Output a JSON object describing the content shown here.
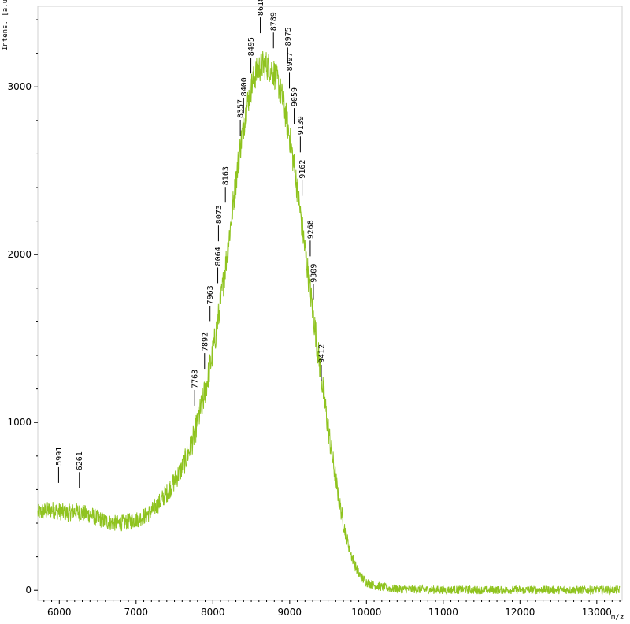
{
  "chart_data": {
    "type": "line",
    "title": "",
    "xlabel": "m/z",
    "ylabel": "Intens. [a.u.]",
    "xlim": [
      5720,
      13330
    ],
    "ylim": [
      -60,
      3480
    ],
    "x_ticks": [
      6000,
      7000,
      8000,
      9000,
      10000,
      11000,
      12000,
      13000
    ],
    "y_ticks": [
      0,
      1000,
      2000,
      3000
    ],
    "line_color": "#8fc31f",
    "grid": false,
    "series": [
      {
        "name": "",
        "x": [
          5720,
          5800,
          5900,
          6000,
          6100,
          6200,
          6300,
          6400,
          6500,
          6600,
          6700,
          6800,
          6900,
          7000,
          7100,
          7200,
          7300,
          7400,
          7500,
          7600,
          7700,
          7750,
          7800,
          7850,
          7900,
          7950,
          8000,
          8050,
          8100,
          8150,
          8200,
          8250,
          8300,
          8350,
          8400,
          8450,
          8500,
          8550,
          8600,
          8650,
          8700,
          8750,
          8800,
          8850,
          8900,
          8950,
          9000,
          9050,
          9100,
          9150,
          9200,
          9250,
          9300,
          9350,
          9400,
          9450,
          9500,
          9550,
          9600,
          9650,
          9700,
          9750,
          9800,
          9850,
          9900,
          9950,
          10000,
          10100,
          10200,
          10300,
          10400,
          10500,
          10700,
          11000,
          11500,
          12000,
          12500,
          13000,
          13300
        ],
        "y": [
          460,
          470,
          480,
          470,
          460,
          470,
          460,
          450,
          430,
          410,
          400,
          400,
          410,
          420,
          440,
          470,
          520,
          580,
          650,
          730,
          840,
          910,
          1000,
          1090,
          1190,
          1300,
          1420,
          1560,
          1710,
          1880,
          2060,
          2250,
          2440,
          2620,
          2770,
          2900,
          3000,
          3070,
          3110,
          3130,
          3130,
          3110,
          3080,
          3020,
          2940,
          2830,
          2700,
          2550,
          2390,
          2210,
          2030,
          1850,
          1670,
          1490,
          1310,
          1140,
          970,
          810,
          660,
          520,
          400,
          300,
          215,
          150,
          100,
          70,
          50,
          30,
          20,
          12,
          8,
          6,
          4,
          3,
          2,
          2,
          2,
          2,
          2
        ]
      }
    ],
    "peak_labels": [
      {
        "text": "5991",
        "mz": 5991,
        "base": 640
      },
      {
        "text": "6261",
        "mz": 6261,
        "base": 610
      },
      {
        "text": "7763",
        "mz": 7763,
        "base": 1100
      },
      {
        "text": "7892",
        "mz": 7892,
        "base": 1320
      },
      {
        "text": "7963",
        "mz": 7963,
        "base": 1600
      },
      {
        "text": "8064",
        "mz": 8064,
        "base": 1830
      },
      {
        "text": "8073",
        "mz": 8073,
        "base": 2080
      },
      {
        "text": "8163",
        "mz": 8163,
        "base": 2310
      },
      {
        "text": "8357",
        "mz": 8357,
        "base": 2710
      },
      {
        "text": "8400",
        "mz": 8400,
        "base": 2840
      },
      {
        "text": "8495",
        "mz": 8495,
        "base": 3080
      },
      {
        "text": "8618",
        "mz": 8618,
        "base": 3320
      },
      {
        "text": "8789",
        "mz": 8789,
        "base": 3230
      },
      {
        "text": "8975",
        "mz": 8975,
        "base": 3140
      },
      {
        "text": "8997",
        "mz": 8997,
        "base": 2990
      },
      {
        "text": "9059",
        "mz": 9059,
        "base": 2780
      },
      {
        "text": "9139",
        "mz": 9139,
        "base": 2610
      },
      {
        "text": "9162",
        "mz": 9162,
        "base": 2350
      },
      {
        "text": "9268",
        "mz": 9268,
        "base": 1990
      },
      {
        "text": "9309",
        "mz": 9309,
        "base": 1730
      },
      {
        "text": "9412",
        "mz": 9412,
        "base": 1250
      }
    ]
  }
}
